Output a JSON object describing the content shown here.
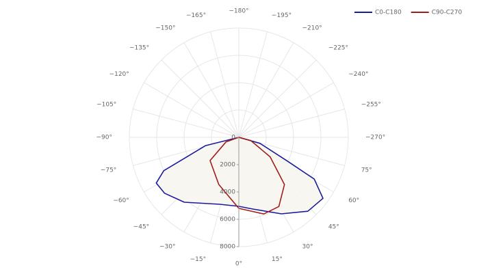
{
  "chart_data": {
    "type": "polar",
    "rlim": [
      0,
      8000
    ],
    "rticks": [
      0,
      2000,
      4000,
      6000,
      8000
    ],
    "thetaticks": [
      {
        "value": 0,
        "label": "0°"
      },
      {
        "value": 15,
        "label": "15°"
      },
      {
        "value": 30,
        "label": "30°"
      },
      {
        "value": 45,
        "label": "45°"
      },
      {
        "value": 60,
        "label": "60°"
      },
      {
        "value": 75,
        "label": "75°"
      },
      {
        "value": -270,
        "label": "−270°"
      },
      {
        "value": -255,
        "label": "−255°"
      },
      {
        "value": -240,
        "label": "−240°"
      },
      {
        "value": -225,
        "label": "−225°"
      },
      {
        "value": -210,
        "label": "−210°"
      },
      {
        "value": -195,
        "label": "−195°"
      },
      {
        "value": -180,
        "label": "−180°"
      },
      {
        "value": -165,
        "label": "−165°"
      },
      {
        "value": -150,
        "label": "−150°"
      },
      {
        "value": -135,
        "label": "−135°"
      },
      {
        "value": -120,
        "label": "−120°"
      },
      {
        "value": -105,
        "label": "−105°"
      },
      {
        "value": -90,
        "label": "−90°"
      },
      {
        "value": -75,
        "label": "−75°"
      },
      {
        "value": -60,
        "label": "−60°"
      },
      {
        "value": -45,
        "label": "−45°"
      },
      {
        "value": -30,
        "label": "−30°"
      },
      {
        "value": -15,
        "label": "−15°"
      }
    ],
    "legend": "top-right",
    "series": [
      {
        "name": "C0-C180",
        "color": "#1a1a9c",
        "fill": "#f7f5ee",
        "x": [
          -90,
          -76,
          -66,
          -61,
          -53,
          -40,
          -16,
          0,
          11,
          29,
          43,
          54,
          61,
          64,
          74,
          90
        ],
        "values": [
          0,
          2500,
          6000,
          6900,
          6800,
          6200,
          5100,
          5050,
          5350,
          6400,
          7400,
          7600,
          6300,
          3900,
          1600,
          0
        ]
      },
      {
        "name": "C90-C270",
        "color": "#a01c1c",
        "x": [
          -90,
          -70,
          -51,
          -23,
          0,
          18,
          30,
          44,
          58,
          75,
          90
        ],
        "values": [
          0,
          1000,
          2700,
          3750,
          5200,
          5900,
          5850,
          4800,
          2700,
          900,
          0
        ]
      }
    ]
  }
}
